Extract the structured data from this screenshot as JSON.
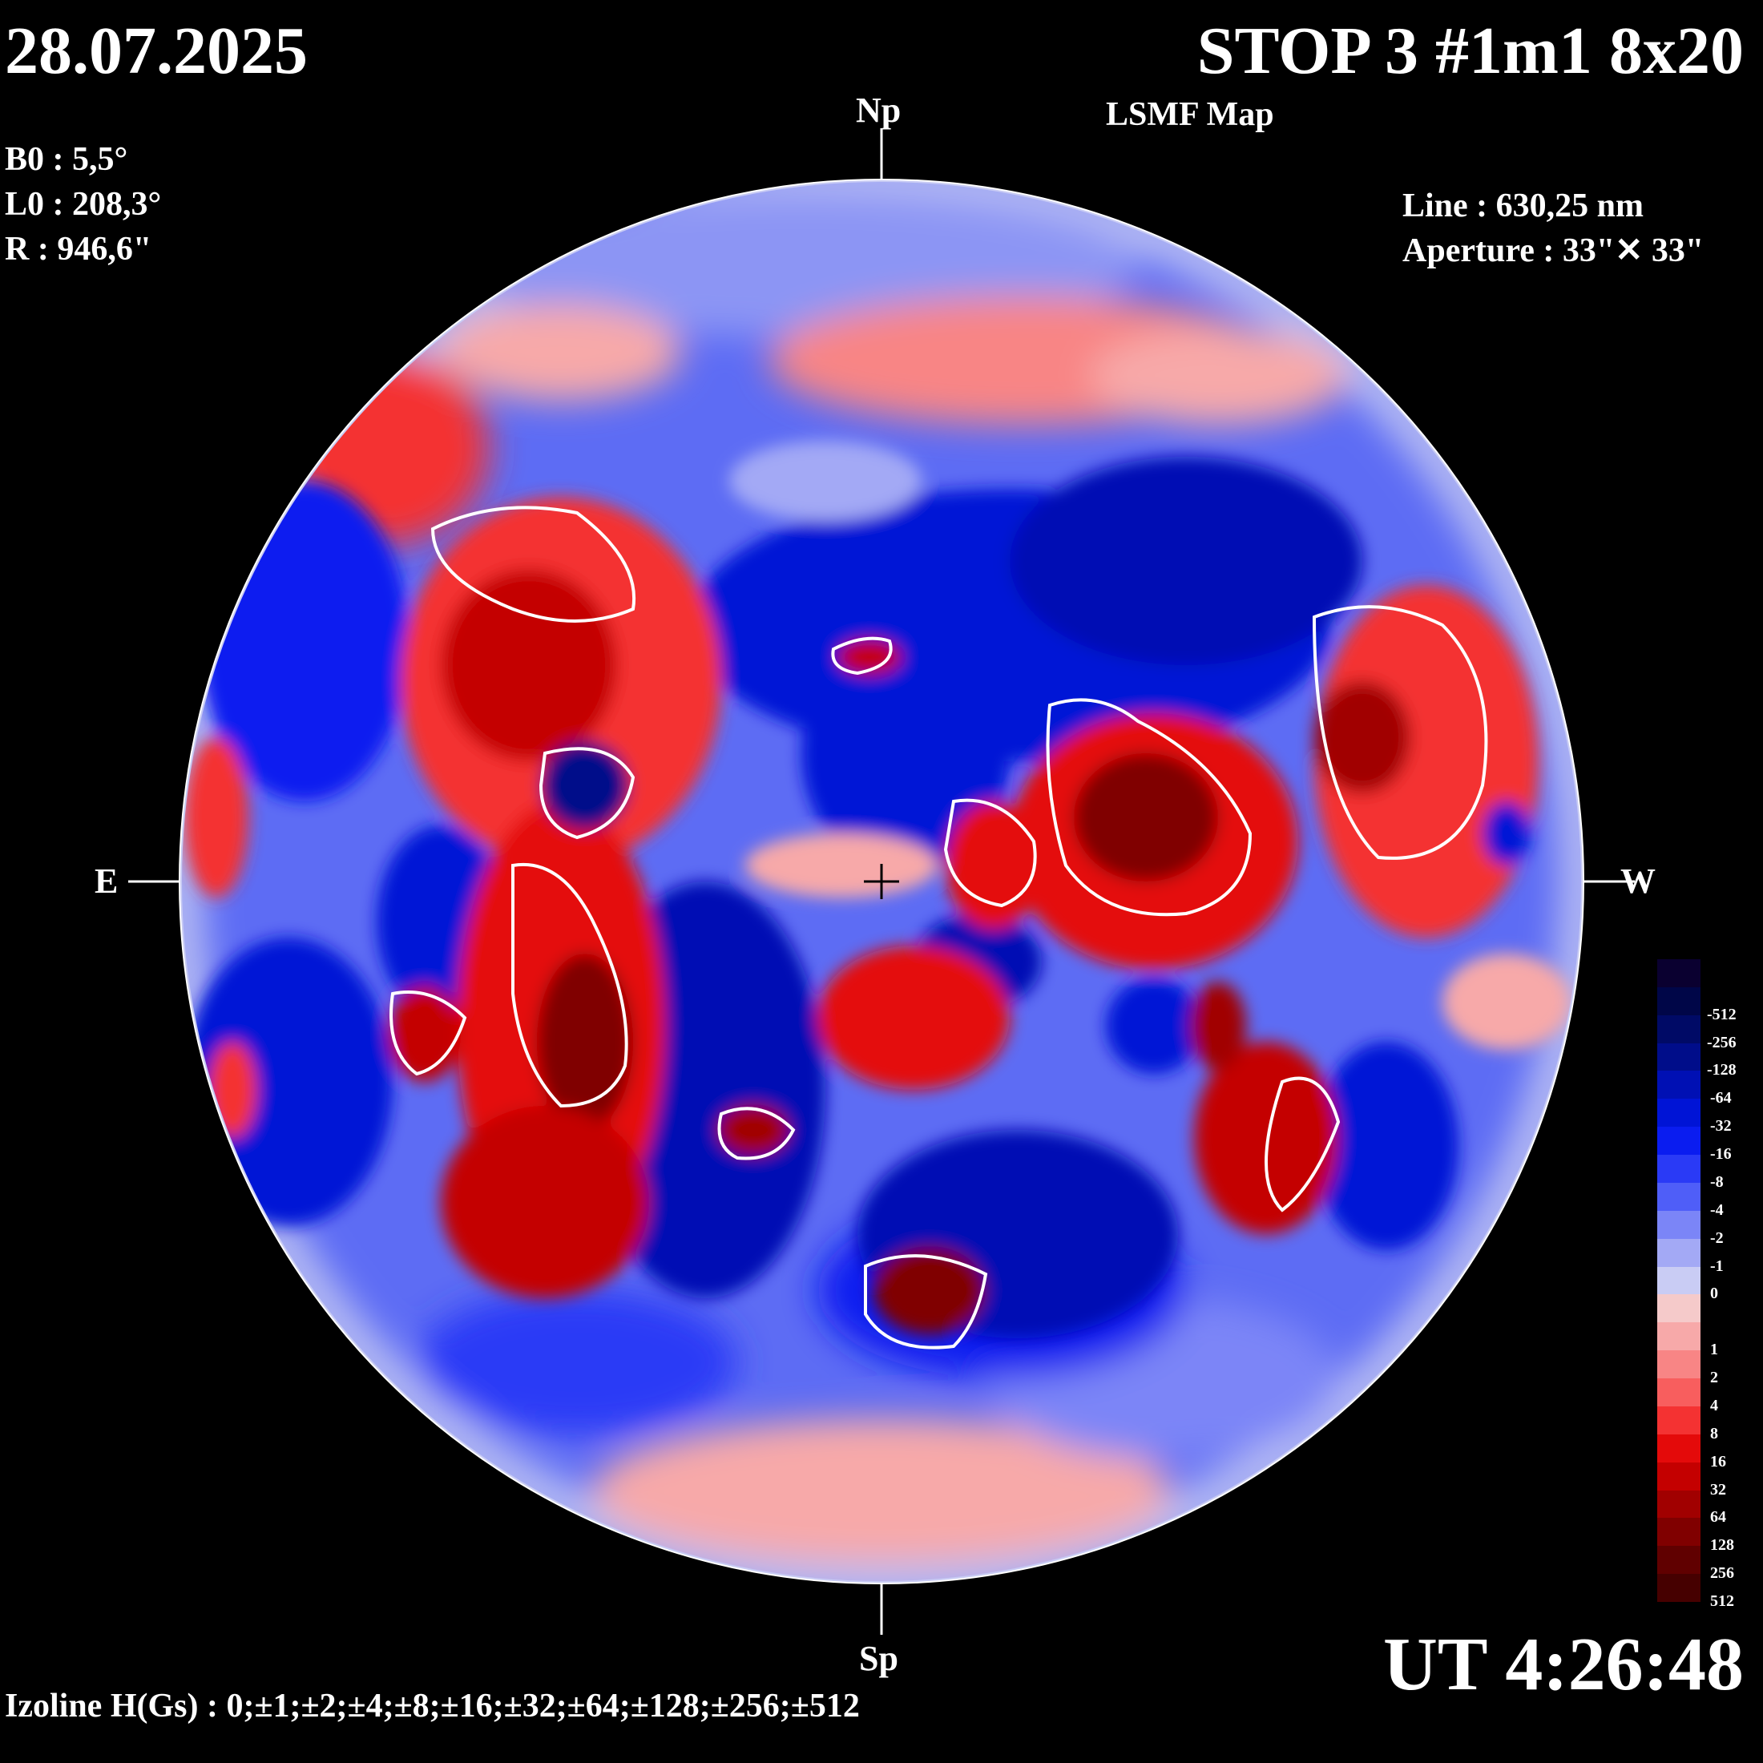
{
  "header": {
    "date": "28.07.2025",
    "title": "STOP 3 #1m1 8x20",
    "subtitle": "LSMF  Map"
  },
  "ephemeris": {
    "b0": "B0 : 5,5°",
    "l0": "L0 : 208,3°",
    "r": "R  : 946,6\""
  },
  "instrument": {
    "line": "Line :  630,25 nm",
    "aperture": "Aperture : 33\"✕ 33\""
  },
  "directions": {
    "north": "Np",
    "south": "Sp",
    "east": "E",
    "west": "W"
  },
  "time": "UT 4:26:48",
  "izoline": "Izoline H(Gs) : 0;±1;±2;±4;±8;±16;±32;±64;±128;±256;±512",
  "legend": [
    {
      "label": "",
      "color": "#0a0030"
    },
    {
      "label": "-512",
      "color": "#000648"
    },
    {
      "label": "-256",
      "color": "#000a66"
    },
    {
      "label": "-128",
      "color": "#000d8a"
    },
    {
      "label": "-64",
      "color": "#0010b4"
    },
    {
      "label": "-32",
      "color": "#0014d6"
    },
    {
      "label": "-16",
      "color": "#0a1cf0"
    },
    {
      "label": "-8",
      "color": "#2a3af6"
    },
    {
      "label": "-4",
      "color": "#4f5ef8"
    },
    {
      "label": "-2",
      "color": "#7b85f7"
    },
    {
      "label": "-1",
      "color": "#a3a9f5"
    },
    {
      "label": "0",
      "color": "#c9ccf4"
    },
    {
      "label": "",
      "color": "#f5caca"
    },
    {
      "label": "1",
      "color": "#f7a9a9"
    },
    {
      "label": "2",
      "color": "#f88585"
    },
    {
      "label": "4",
      "color": "#f85e5e"
    },
    {
      "label": "8",
      "color": "#f43232"
    },
    {
      "label": "16",
      "color": "#e40a0a"
    },
    {
      "label": "32",
      "color": "#c40000"
    },
    {
      "label": "64",
      "color": "#a10000"
    },
    {
      "label": "128",
      "color": "#800000"
    },
    {
      "label": "256",
      "color": "#600000"
    },
    {
      "label": "512",
      "color": "#460000"
    }
  ],
  "colors": {
    "background": "#000000",
    "text": "#ffffff",
    "izoline_zero": "#ffffff"
  }
}
